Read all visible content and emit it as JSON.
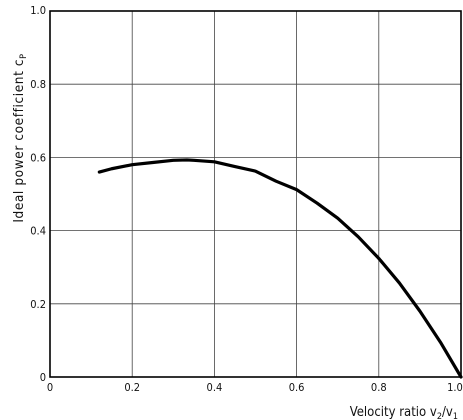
{
  "chart_data": {
    "type": "line",
    "xlabel": "Velocity ratio v",
    "xlabel_sub1": "2",
    "xlabel_mid": "/v",
    "xlabel_sub2": "1",
    "ylabel": "Ideal power coefficient c",
    "ylabel_sub": "P",
    "xlim": [
      0,
      1.0
    ],
    "ylim": [
      0,
      1.0
    ],
    "x_tick_labels": [
      "0",
      "0.2",
      "0.4",
      "0.6",
      "0.8",
      "1.0"
    ],
    "y_tick_labels": [
      "0",
      "0.2",
      "0.4",
      "0.6",
      "0.8",
      "1.0"
    ],
    "grid": true,
    "legend": "none",
    "series": [
      {
        "color": "#000000",
        "x": [
          0.12,
          0.15,
          0.2,
          0.25,
          0.3,
          0.333,
          0.35,
          0.4,
          0.45,
          0.5,
          0.55,
          0.6,
          0.65,
          0.7,
          0.75,
          0.8,
          0.85,
          0.9,
          0.95,
          1.0
        ],
        "y": [
          0.56,
          0.569,
          0.58,
          0.586,
          0.592,
          0.593,
          0.592,
          0.588,
          0.575,
          0.5625,
          0.535,
          0.512,
          0.475,
          0.434,
          0.383,
          0.324,
          0.257,
          0.18,
          0.095,
          0.0
        ]
      }
    ]
  }
}
